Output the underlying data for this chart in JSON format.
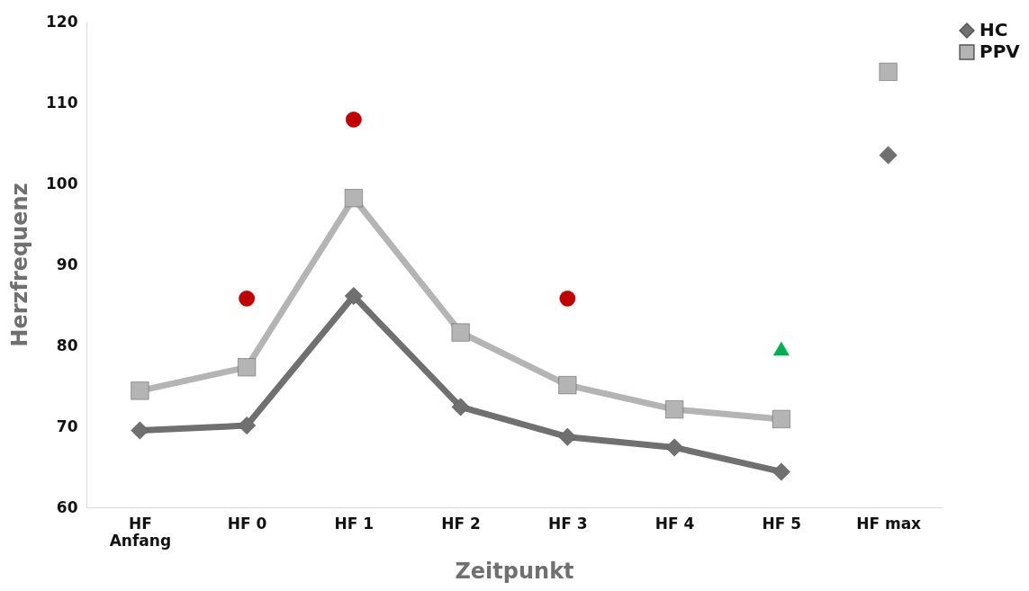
{
  "chart_data": {
    "type": "line",
    "xlabel": "Zeitpunkt",
    "ylabel": "Herzfrequenz",
    "categories": [
      "HF Anfang",
      "HF 0",
      "HF 1",
      "HF 2",
      "HF 3",
      "HF 4",
      "HF 5",
      "HF max"
    ],
    "series": [
      {
        "name": "HC",
        "color": "#707070",
        "marker": "diamond",
        "values": [
          69.5,
          70.1,
          86.1,
          72.4,
          68.7,
          67.4,
          64.4,
          null
        ]
      },
      {
        "name": "PPV",
        "color": "#b4b4b4",
        "marker": "square",
        "values": [
          74.4,
          77.3,
          98.2,
          81.6,
          75.1,
          72.1,
          70.9,
          null
        ]
      },
      {
        "type": "scatter",
        "color": "#707070",
        "marker": "diamond",
        "values": [
          null,
          null,
          null,
          null,
          null,
          null,
          null,
          103.5
        ]
      },
      {
        "type": "scatter",
        "color": "#b4b4b4",
        "marker": "square",
        "values": [
          null,
          null,
          null,
          null,
          null,
          null,
          null,
          113.8
        ]
      },
      {
        "type": "scatter",
        "color": "#c00000",
        "marker": "circle",
        "values": [
          null,
          85.8,
          107.9,
          null,
          85.8,
          null,
          null,
          null
        ]
      },
      {
        "type": "scatter",
        "color": "#00b050",
        "marker": "triangle",
        "values": [
          null,
          null,
          null,
          null,
          null,
          null,
          79.6,
          null
        ]
      }
    ],
    "ylim": [
      60,
      120
    ],
    "yticks": [
      60,
      70,
      80,
      90,
      100,
      110,
      120
    ],
    "grid": false,
    "legend": "right"
  }
}
